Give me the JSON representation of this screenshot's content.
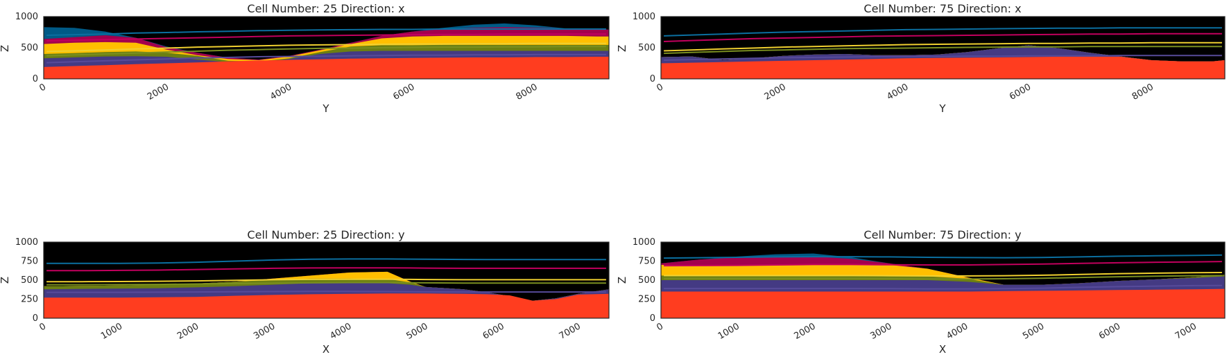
{
  "colors": {
    "background": "#000000",
    "basement": "#ff3d1f",
    "unit_purple": "#443a83",
    "unit_olive": "#6b7f12",
    "unit_yellow": "#ffbf00",
    "unit_magenta": "#a3004d",
    "unit_blue": "#005a86",
    "line_blue": "#0b6fa0",
    "line_magenta": "#c2005e",
    "line_yellow": "#f0d030",
    "line_olive": "#7b8f20",
    "line_purple": "#574b9a"
  },
  "chart_data": [
    {
      "type": "area",
      "title": "Cell Number: 25 Direction: x",
      "xlabel": "Y",
      "ylabel": "Z",
      "xlim": [
        0,
        9200
      ],
      "ylim": [
        0,
        1000
      ],
      "xticks": [
        0,
        2000,
        4000,
        6000,
        8000
      ],
      "yticks": [
        0,
        500,
        1000
      ],
      "x": [
        0,
        500,
        1000,
        1500,
        2000,
        2500,
        3000,
        3500,
        4000,
        4500,
        5000,
        5500,
        6000,
        6500,
        7000,
        7500,
        8000,
        8500,
        9000,
        9200
      ],
      "surfaces": {
        "basement_top": [
          190,
          205,
          220,
          235,
          250,
          265,
          280,
          295,
          305,
          315,
          325,
          330,
          335,
          340,
          345,
          345,
          350,
          350,
          355,
          355
        ],
        "purple_top": [
          330,
          345,
          360,
          365,
          355,
          310,
          270,
          260,
          320,
          400,
          440,
          450,
          450,
          450,
          450,
          450,
          450,
          450,
          450,
          450
        ],
        "olive_top": [
          400,
          415,
          430,
          440,
          420,
          370,
          290,
          280,
          330,
          430,
          520,
          540,
          540,
          545,
          545,
          545,
          545,
          545,
          545,
          545
        ],
        "yellow_top": [
          560,
          580,
          590,
          580,
          470,
          380,
          320,
          300,
          360,
          460,
          560,
          650,
          680,
          690,
          690,
          690,
          690,
          690,
          680,
          680
        ],
        "magenta_top": [
          640,
          670,
          700,
          660,
          510,
          420,
          340,
          310,
          370,
          470,
          580,
          690,
          760,
          800,
          820,
          830,
          820,
          810,
          800,
          790
        ],
        "blue_top": [
          830,
          820,
          760,
          660,
          520,
          420,
          340,
          310,
          370,
          470,
          580,
          690,
          760,
          820,
          870,
          890,
          860,
          810,
          800,
          790
        ]
      },
      "lines": {
        "blue": [
          700,
          710,
          720,
          735,
          745,
          755,
          765,
          775,
          780,
          785,
          790,
          795,
          795,
          800,
          800,
          800,
          800,
          800,
          800,
          800
        ],
        "magenta": [
          610,
          620,
          630,
          640,
          650,
          660,
          670,
          680,
          690,
          695,
          700,
          705,
          710,
          715,
          715,
          720,
          720,
          720,
          720,
          720
        ],
        "yellow": [
          440,
          450,
          465,
          480,
          495,
          510,
          520,
          530,
          540,
          545,
          550,
          555,
          560,
          560,
          565,
          565,
          570,
          570,
          570,
          570
        ],
        "olive": [
          370,
          385,
          400,
          415,
          430,
          445,
          460,
          470,
          480,
          490,
          495,
          500,
          505,
          510,
          510,
          515,
          515,
          520,
          520,
          520
        ],
        "purple": [
          260,
          275,
          290,
          305,
          320,
          335,
          345,
          355,
          360,
          365,
          370,
          375,
          380,
          380,
          385,
          385,
          390,
          390,
          390,
          390
        ]
      }
    },
    {
      "type": "area",
      "title": "Cell Number: 75 Direction: x",
      "xlabel": "Y",
      "ylabel": "Z",
      "xlim": [
        0,
        9200
      ],
      "ylim": [
        0,
        1000
      ],
      "xticks": [
        0,
        2000,
        4000,
        6000,
        8000
      ],
      "yticks": [
        0,
        500,
        1000
      ],
      "x": [
        0,
        500,
        1000,
        1500,
        2000,
        2500,
        3000,
        3500,
        4000,
        4500,
        5000,
        5500,
        6000,
        6500,
        7000,
        7500,
        8000,
        8500,
        9000,
        9200
      ],
      "surfaces": {
        "basement_top": [
          250,
          260,
          270,
          280,
          290,
          300,
          310,
          320,
          330,
          335,
          340,
          345,
          350,
          355,
          355,
          355,
          300,
          280,
          280,
          300
        ],
        "purple_top": [
          350,
          360,
          300,
          330,
          370,
          390,
          400,
          380,
          380,
          390,
          430,
          490,
          540,
          490,
          420,
          360,
          300,
          280,
          280,
          300
        ],
        "olive_top": [
          350,
          360,
          300,
          330,
          370,
          390,
          400,
          380,
          380,
          390,
          430,
          490,
          540,
          490,
          420,
          360,
          300,
          280,
          280,
          300
        ],
        "yellow_top": [
          350,
          360,
          300,
          330,
          370,
          390,
          400,
          380,
          380,
          390,
          430,
          490,
          540,
          490,
          420,
          360,
          300,
          280,
          280,
          300
        ],
        "magenta_top": [
          350,
          360,
          300,
          330,
          370,
          390,
          400,
          380,
          380,
          390,
          430,
          490,
          540,
          490,
          420,
          360,
          300,
          280,
          280,
          300
        ],
        "blue_top": [
          350,
          360,
          300,
          330,
          370,
          390,
          400,
          380,
          380,
          390,
          430,
          490,
          540,
          490,
          420,
          360,
          300,
          280,
          280,
          300
        ]
      },
      "lines": {
        "blue": [
          690,
          705,
          720,
          735,
          750,
          760,
          770,
          780,
          790,
          795,
          800,
          805,
          810,
          815,
          815,
          820,
          820,
          820,
          820,
          820
        ],
        "magenta": [
          600,
          615,
          630,
          645,
          655,
          665,
          675,
          685,
          690,
          695,
          700,
          705,
          710,
          715,
          720,
          720,
          725,
          725,
          725,
          725
        ],
        "yellow": [
          450,
          465,
          480,
          495,
          510,
          520,
          530,
          540,
          550,
          555,
          560,
          565,
          570,
          570,
          575,
          575,
          580,
          580,
          580,
          580
        ],
        "olive": [
          410,
          425,
          440,
          455,
          465,
          475,
          485,
          490,
          495,
          500,
          505,
          510,
          515,
          515,
          520,
          520,
          520,
          520,
          520,
          520
        ],
        "purple": [
          300,
          310,
          320,
          330,
          340,
          345,
          350,
          355,
          360,
          360,
          365,
          365,
          370,
          370,
          370,
          375,
          375,
          375,
          375,
          375
        ]
      }
    },
    {
      "type": "area",
      "title": "Cell Number: 25 Direction: y",
      "xlabel": "X",
      "ylabel": "Z",
      "xlim": [
        0,
        7400
      ],
      "ylim": [
        0,
        1000
      ],
      "xticks": [
        0,
        1000,
        2000,
        3000,
        4000,
        5000,
        6000,
        7000
      ],
      "yticks": [
        0,
        250,
        500,
        750,
        1000
      ],
      "x": [
        0,
        500,
        1000,
        1500,
        2000,
        2500,
        3000,
        3500,
        4000,
        4500,
        4800,
        5000,
        5500,
        5800,
        6100,
        6400,
        6700,
        7000,
        7400
      ],
      "surfaces": {
        "basement_top": [
          270,
          270,
          270,
          275,
          280,
          295,
          305,
          315,
          320,
          325,
          325,
          325,
          320,
          315,
          300,
          230,
          250,
          310,
          320
        ],
        "purple_top": [
          380,
          385,
          390,
          395,
          405,
          420,
          440,
          460,
          465,
          460,
          440,
          410,
          380,
          340,
          290,
          230,
          260,
          320,
          380
        ],
        "olive_top": [
          420,
          425,
          430,
          440,
          455,
          480,
          505,
          520,
          520,
          515,
          470,
          410,
          380,
          340,
          290,
          230,
          260,
          320,
          380
        ],
        "yellow_top": [
          420,
          425,
          430,
          440,
          455,
          480,
          520,
          560,
          600,
          610,
          480,
          410,
          380,
          340,
          290,
          230,
          260,
          320,
          380
        ],
        "magenta_top": [
          420,
          425,
          430,
          440,
          455,
          480,
          520,
          560,
          600,
          610,
          480,
          410,
          380,
          340,
          290,
          230,
          260,
          320,
          380
        ],
        "blue_top": [
          420,
          425,
          430,
          440,
          455,
          480,
          520,
          560,
          600,
          610,
          480,
          410,
          380,
          340,
          290,
          230,
          260,
          320,
          380
        ]
      },
      "lines": {
        "blue": [
          720,
          720,
          720,
          725,
          735,
          750,
          765,
          775,
          778,
          778,
          776,
          775,
          772,
          770,
          770,
          770,
          770,
          770,
          770
        ],
        "magenta": [
          625,
          625,
          628,
          632,
          640,
          648,
          655,
          660,
          662,
          662,
          660,
          658,
          655,
          655,
          655,
          655,
          655,
          655,
          655
        ],
        "yellow": [
          480,
          480,
          482,
          485,
          490,
          498,
          505,
          510,
          512,
          512,
          510,
          508,
          505,
          505,
          505,
          505,
          505,
          505,
          505
        ],
        "olive": [
          440,
          440,
          442,
          445,
          450,
          455,
          460,
          465,
          468,
          468,
          466,
          465,
          462,
          462,
          462,
          462,
          462,
          462,
          462
        ],
        "purple": [
          340,
          340,
          340,
          342,
          345,
          348,
          350,
          352,
          352,
          350,
          348,
          346,
          345,
          345,
          345,
          345,
          345,
          345,
          345
        ]
      }
    },
    {
      "type": "area",
      "title": "Cell Number: 75 Direction: y",
      "xlabel": "X",
      "ylabel": "Z",
      "xlim": [
        0,
        7400
      ],
      "ylim": [
        0,
        1000
      ],
      "xticks": [
        0,
        1000,
        2000,
        3000,
        4000,
        5000,
        6000,
        7000
      ],
      "yticks": [
        0,
        250,
        500,
        750,
        1000
      ],
      "x": [
        0,
        500,
        1000,
        1500,
        2000,
        2500,
        3000,
        3500,
        4000,
        4500,
        5000,
        5500,
        6000,
        6500,
        7000,
        7400
      ],
      "surfaces": {
        "basement_top": [
          350,
          350,
          350,
          350,
          350,
          350,
          350,
          350,
          350,
          355,
          360,
          365,
          370,
          375,
          380,
          385
        ],
        "purple_top": [
          500,
          500,
          500,
          500,
          500,
          500,
          500,
          500,
          480,
          440,
          440,
          460,
          490,
          510,
          530,
          550
        ],
        "olive_top": [
          560,
          560,
          560,
          560,
          560,
          560,
          560,
          550,
          520,
          440,
          440,
          460,
          490,
          510,
          540,
          570
        ],
        "yellow_top": [
          700,
          700,
          700,
          700,
          700,
          700,
          700,
          650,
          540,
          440,
          440,
          460,
          490,
          510,
          540,
          570
        ],
        "magenta_top": [
          720,
          770,
          800,
          810,
          810,
          780,
          720,
          650,
          540,
          440,
          440,
          460,
          490,
          510,
          540,
          570
        ],
        "blue_top": [
          720,
          770,
          810,
          840,
          850,
          800,
          720,
          650,
          540,
          440,
          440,
          460,
          490,
          510,
          540,
          570
        ]
      },
      "lines": {
        "blue": [
          790,
          795,
          800,
          805,
          808,
          808,
          805,
          800,
          796,
          795,
          798,
          805,
          815,
          820,
          825,
          830
        ],
        "magenta": [
          690,
          692,
          695,
          700,
          705,
          705,
          702,
          700,
          700,
          705,
          712,
          720,
          728,
          735,
          740,
          745
        ],
        "yellow": [
          560,
          560,
          560,
          560,
          560,
          560,
          558,
          555,
          555,
          558,
          565,
          575,
          585,
          592,
          598,
          600
        ],
        "olive": [
          520,
          520,
          520,
          520,
          520,
          520,
          518,
          515,
          515,
          518,
          525,
          535,
          545,
          552,
          558,
          560
        ],
        "purple": [
          390,
          390,
          390,
          390,
          390,
          390,
          388,
          385,
          385,
          388,
          395,
          405,
          415,
          422,
          428,
          430
        ]
      }
    }
  ]
}
